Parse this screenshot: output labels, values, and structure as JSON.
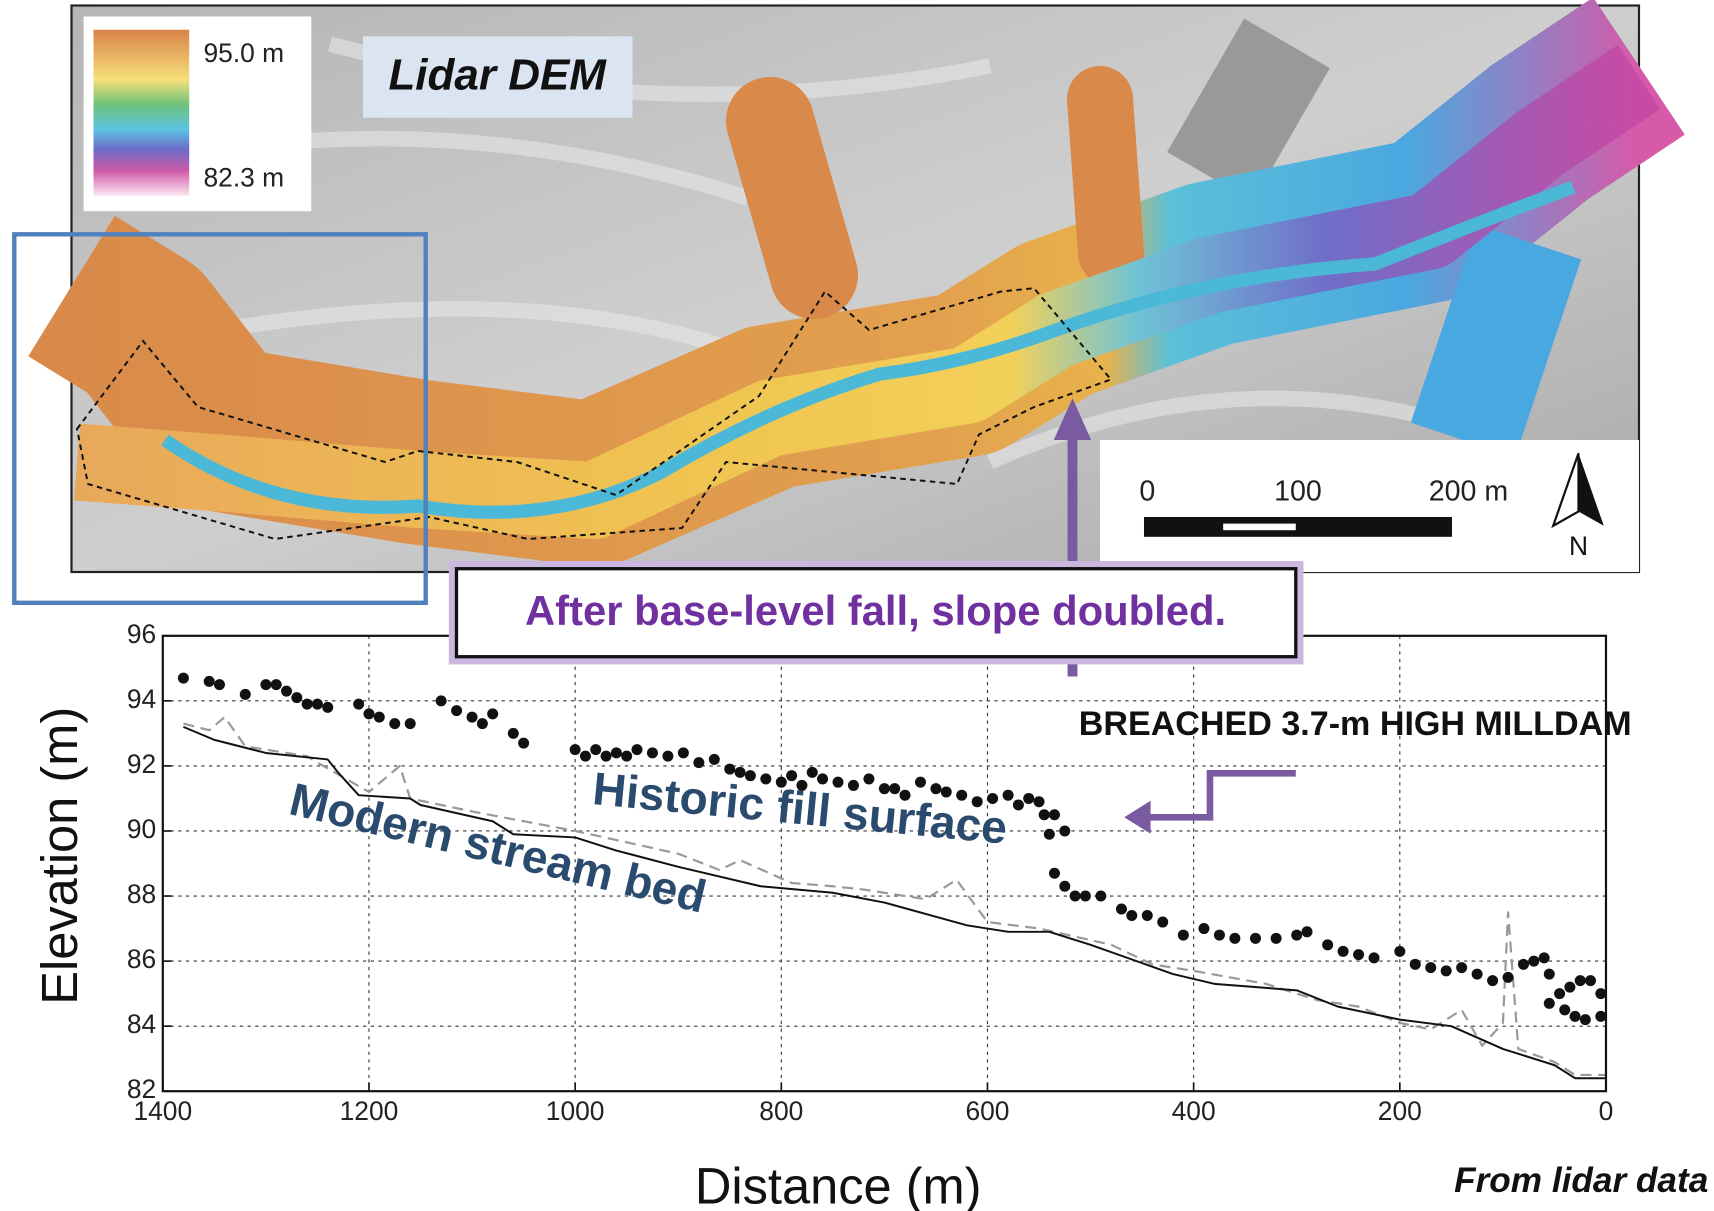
{
  "map": {
    "title": "Lidar DEM",
    "legend": {
      "max": "95.0 m",
      "min": "82.3 m"
    },
    "scale": {
      "labels": [
        "0",
        "100",
        "200 m"
      ]
    },
    "north": "N"
  },
  "annotations": {
    "callout": "After base-level fall, slope doubled.",
    "dam": "BREACHED 3.7-m HIGH MILLDAM",
    "source": "From lidar data"
  },
  "chart_data": {
    "type": "line",
    "xlabel": "Distance (m)",
    "ylabel": "Elevation (m)",
    "xlim": [
      1400,
      0
    ],
    "xticks": [
      1400,
      1200,
      1000,
      800,
      600,
      400,
      200,
      0
    ],
    "ylim": [
      82,
      96
    ],
    "yticks": [
      82,
      84,
      86,
      88,
      90,
      92,
      94,
      96
    ],
    "grid": true,
    "series": [
      {
        "name": "Historic fill surface",
        "style": "dots",
        "color": "#111111",
        "x": [
          1380,
          1355,
          1345,
          1320,
          1300,
          1290,
          1280,
          1270,
          1260,
          1250,
          1240,
          1210,
          1200,
          1190,
          1175,
          1160,
          1130,
          1115,
          1100,
          1090,
          1080,
          1060,
          1050,
          1000,
          990,
          980,
          970,
          960,
          950,
          940,
          925,
          910,
          895,
          880,
          865,
          850,
          840,
          830,
          815,
          800,
          790,
          780,
          770,
          760,
          745,
          730,
          715,
          700,
          690,
          680,
          665,
          650,
          640,
          625,
          610,
          595,
          580,
          570,
          560,
          550,
          545,
          535,
          525,
          540,
          535,
          525,
          515,
          505,
          490,
          470,
          460,
          445,
          430,
          410,
          390,
          375,
          360,
          340,
          320,
          300,
          290,
          270,
          255,
          240,
          225,
          200,
          185,
          170,
          155,
          140,
          125,
          110,
          95,
          80,
          70,
          60,
          55,
          45,
          35,
          25,
          15,
          5,
          55,
          40,
          30,
          20,
          5
        ],
        "values": [
          94.7,
          94.6,
          94.5,
          94.2,
          94.5,
          94.5,
          94.3,
          94.1,
          93.9,
          93.9,
          93.8,
          93.9,
          93.6,
          93.5,
          93.3,
          93.3,
          94.0,
          93.7,
          93.5,
          93.3,
          93.6,
          93.0,
          92.7,
          92.5,
          92.3,
          92.5,
          92.3,
          92.4,
          92.3,
          92.5,
          92.4,
          92.3,
          92.4,
          92.1,
          92.2,
          91.9,
          91.8,
          91.7,
          91.6,
          91.5,
          91.7,
          91.4,
          91.8,
          91.6,
          91.5,
          91.4,
          91.6,
          91.3,
          91.3,
          91.1,
          91.5,
          91.3,
          91.2,
          91.1,
          90.9,
          91.0,
          91.1,
          90.8,
          91.0,
          90.9,
          90.5,
          90.5,
          90.0,
          89.9,
          88.7,
          88.3,
          88.0,
          88.0,
          88.0,
          87.6,
          87.4,
          87.4,
          87.2,
          86.8,
          87.0,
          86.8,
          86.7,
          86.7,
          86.7,
          86.8,
          86.9,
          86.5,
          86.3,
          86.2,
          86.1,
          86.3,
          85.9,
          85.8,
          85.7,
          85.8,
          85.6,
          85.4,
          85.5,
          85.9,
          86.0,
          86.1,
          85.6,
          85.0,
          85.2,
          85.4,
          85.4,
          85.0,
          84.7,
          84.5,
          84.3,
          84.2,
          84.3
        ]
      },
      {
        "name": "Modern stream bed",
        "style": "solid",
        "color": "#111111",
        "x": [
          1380,
          1350,
          1300,
          1240,
          1230,
          1210,
          1160,
          1150,
          1080,
          1060,
          1000,
          960,
          900,
          820,
          750,
          700,
          620,
          580,
          540,
          500,
          420,
          380,
          300,
          260,
          200,
          150,
          100,
          50,
          30,
          0
        ],
        "values": [
          93.2,
          92.8,
          92.4,
          92.2,
          91.8,
          91.1,
          91.0,
          90.8,
          90.3,
          89.9,
          89.8,
          89.4,
          88.9,
          88.3,
          88.1,
          87.8,
          87.1,
          86.9,
          86.9,
          86.5,
          85.6,
          85.3,
          85.1,
          84.6,
          84.2,
          84.0,
          83.3,
          82.8,
          82.4,
          82.4
        ]
      },
      {
        "style": "dashed",
        "color": "#999999",
        "x": [
          1380,
          1355,
          1340,
          1320,
          1260,
          1250,
          1200,
          1170,
          1160,
          1100,
          1000,
          900,
          860,
          840,
          790,
          750,
          720,
          660,
          630,
          600,
          550,
          480,
          440,
          400,
          330,
          280,
          240,
          200,
          170,
          140,
          120,
          100,
          95,
          85,
          50,
          30,
          0
        ],
        "values": [
          93.3,
          93.1,
          93.5,
          92.6,
          92.3,
          92.1,
          91.2,
          92.0,
          91.0,
          90.6,
          90.0,
          89.3,
          88.8,
          89.1,
          88.4,
          88.3,
          88.2,
          87.9,
          88.5,
          87.2,
          87.0,
          86.5,
          85.9,
          85.7,
          85.3,
          84.8,
          84.6,
          84.1,
          83.9,
          84.5,
          83.4,
          84.1,
          87.5,
          83.3,
          82.9,
          82.5,
          82.5
        ]
      }
    ]
  }
}
